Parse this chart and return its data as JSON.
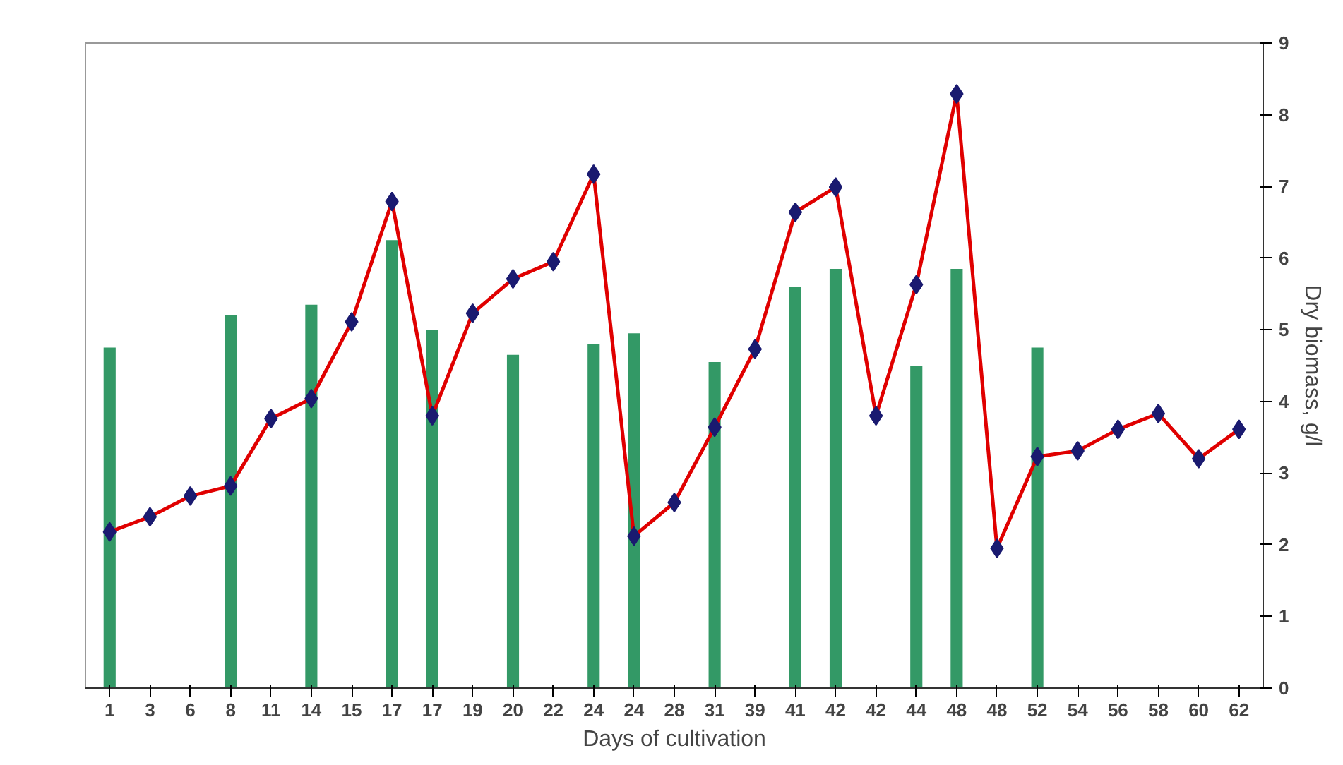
{
  "chart_data": {
    "type": "line",
    "xlabel": "Days of cultivation",
    "ylabel": "Dry biomass, g/l",
    "categories": [
      "1",
      "3",
      "6",
      "8",
      "11",
      "14",
      "15",
      "17",
      "17",
      "19",
      "20",
      "22",
      "24",
      "24",
      "28",
      "31",
      "39",
      "41",
      "42",
      "42",
      "44",
      "48",
      "48",
      "52",
      "54",
      "56",
      "58",
      "60",
      "62"
    ],
    "series": [
      {
        "type": "bar",
        "color": "#339966",
        "values": [
          4.75,
          null,
          null,
          5.2,
          null,
          5.35,
          null,
          6.25,
          5.0,
          null,
          4.65,
          null,
          4.8,
          4.95,
          null,
          4.55,
          null,
          5.6,
          5.85,
          null,
          4.5,
          5.85,
          null,
          4.75,
          null,
          null,
          null,
          null,
          null
        ]
      },
      {
        "color": "#e00000",
        "values": [
          2.18,
          2.39,
          2.68,
          2.82,
          3.76,
          4.04,
          5.11,
          6.79,
          3.8,
          5.23,
          5.71,
          5.95,
          7.17,
          2.12,
          2.59,
          3.64,
          4.73,
          6.64,
          6.99,
          3.8,
          5.63,
          8.29,
          1.95,
          3.23,
          3.31,
          3.61,
          3.83,
          3.2,
          3.61
        ]
      }
    ],
    "marker": "diamond",
    "line_style": "solid",
    "ylim": [
      0,
      9
    ],
    "yticks": [
      0,
      1,
      2,
      3,
      4,
      5,
      6,
      7,
      8,
      9
    ],
    "grid": false
  }
}
